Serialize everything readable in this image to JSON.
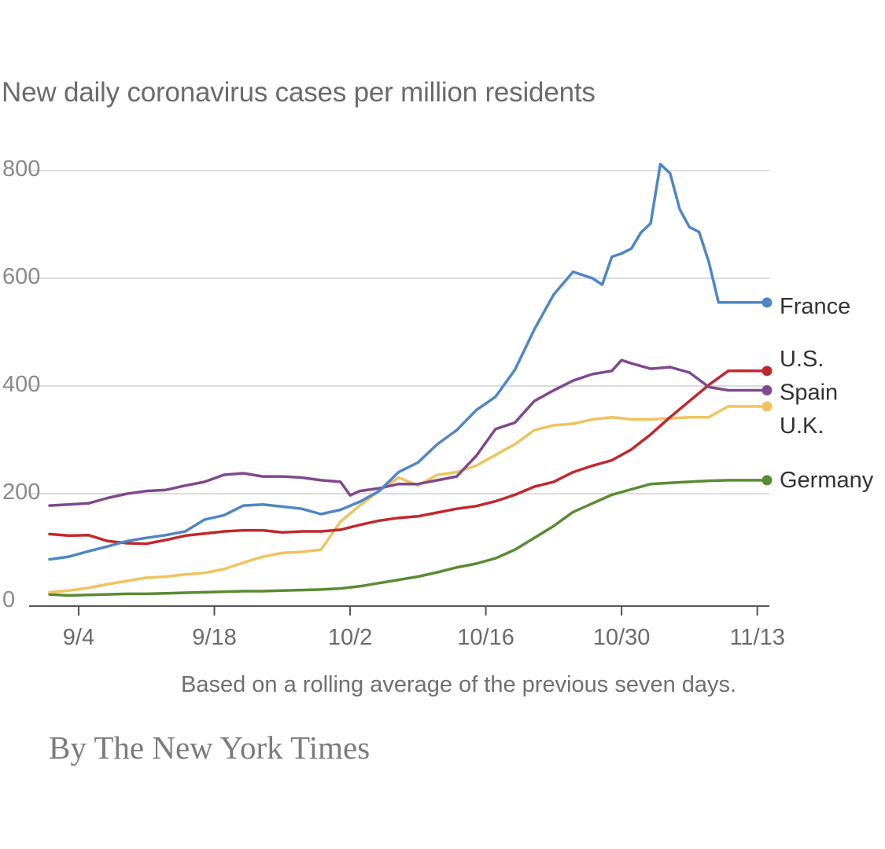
{
  "chart_data": {
    "type": "line",
    "title": "New daily coronavirus cases per million residents",
    "note": "Based on a rolling average of the previous seven days.",
    "credit": "By The New York Times",
    "xlabel": "",
    "ylabel": "",
    "ylim": [
      0,
      800
    ],
    "yticks": [
      0,
      200,
      400,
      600,
      800
    ],
    "ytick_labels": [
      "0",
      "200",
      "400",
      "600",
      "800"
    ],
    "xlim": [
      0,
      74
    ],
    "xticks": [
      3,
      17,
      31,
      45,
      59,
      73
    ],
    "xtick_labels": [
      "9/4",
      "9/18",
      "10/2",
      "10/16",
      "10/30",
      "11/13"
    ],
    "grid": true,
    "series": [
      {
        "name": "France",
        "label": "France",
        "color": "#4f86c6",
        "x": [
          0,
          2,
          4,
          6,
          8,
          10,
          12,
          14,
          16,
          18,
          20,
          22,
          24,
          26,
          28,
          30,
          32,
          34,
          36,
          38,
          40,
          42,
          44,
          46,
          48,
          50,
          52,
          54,
          56,
          57,
          58,
          59,
          60,
          61,
          62,
          63,
          64,
          65,
          66,
          67,
          68,
          69,
          70,
          71,
          72,
          73,
          74
        ],
        "values": [
          78,
          83,
          93,
          102,
          112,
          118,
          123,
          130,
          152,
          160,
          178,
          180,
          176,
          172,
          162,
          170,
          185,
          205,
          240,
          258,
          292,
          318,
          355,
          380,
          430,
          505,
          570,
          612,
          600,
          588,
          640,
          646,
          655,
          685,
          702,
          812,
          795,
          728,
          695,
          686,
          630,
          555,
          555,
          555,
          555,
          555,
          555
        ]
      },
      {
        "name": "Spain",
        "label": "Spain",
        "color": "#7e4a8c",
        "x": [
          0,
          2,
          4,
          6,
          8,
          10,
          12,
          14,
          16,
          18,
          20,
          22,
          24,
          26,
          28,
          30,
          31,
          32,
          34,
          36,
          38,
          40,
          42,
          44,
          46,
          48,
          50,
          52,
          54,
          56,
          58,
          59,
          60,
          62,
          64,
          66,
          68,
          70,
          72,
          74
        ],
        "values": [
          178,
          180,
          182,
          192,
          200,
          205,
          207,
          215,
          222,
          235,
          238,
          232,
          232,
          230,
          225,
          222,
          197,
          205,
          210,
          218,
          218,
          225,
          232,
          270,
          320,
          332,
          372,
          392,
          410,
          422,
          428,
          448,
          442,
          432,
          435,
          425,
          398,
          392,
          392,
          392
        ]
      },
      {
        "name": "U.S.",
        "label": "U.S.",
        "color": "#c0282d",
        "x": [
          0,
          2,
          4,
          6,
          8,
          10,
          12,
          14,
          16,
          18,
          20,
          22,
          24,
          26,
          28,
          30,
          32,
          34,
          36,
          38,
          40,
          42,
          44,
          46,
          48,
          50,
          52,
          54,
          56,
          58,
          60,
          62,
          64,
          66,
          68,
          70,
          72,
          74
        ],
        "values": [
          125,
          122,
          123,
          112,
          108,
          107,
          114,
          122,
          126,
          130,
          132,
          132,
          128,
          130,
          130,
          133,
          142,
          150,
          155,
          158,
          165,
          172,
          177,
          186,
          198,
          213,
          222,
          240,
          252,
          262,
          282,
          310,
          342,
          372,
          402,
          428,
          428,
          428
        ]
      },
      {
        "name": "U.K.",
        "label": "U.K.",
        "color": "#f0c35f",
        "x": [
          0,
          2,
          4,
          6,
          8,
          10,
          12,
          14,
          16,
          18,
          20,
          22,
          24,
          26,
          28,
          30,
          32,
          34,
          36,
          38,
          40,
          42,
          44,
          46,
          48,
          50,
          52,
          54,
          56,
          58,
          60,
          62,
          64,
          66,
          68,
          70,
          72,
          74
        ],
        "values": [
          17,
          20,
          25,
          32,
          38,
          44,
          46,
          50,
          53,
          60,
          72,
          83,
          90,
          92,
          96,
          148,
          178,
          205,
          230,
          215,
          235,
          240,
          252,
          272,
          292,
          318,
          327,
          330,
          338,
          342,
          338,
          338,
          340,
          342,
          342,
          362,
          362,
          362
        ]
      },
      {
        "name": "Germany",
        "label": "Germany",
        "color": "#5b8a34",
        "x": [
          0,
          2,
          4,
          6,
          8,
          10,
          12,
          14,
          16,
          18,
          20,
          22,
          24,
          26,
          28,
          30,
          32,
          34,
          36,
          38,
          40,
          42,
          44,
          46,
          48,
          50,
          52,
          54,
          56,
          58,
          60,
          62,
          64,
          66,
          68,
          70,
          72,
          74
        ],
        "values": [
          13,
          11,
          12,
          13,
          14,
          14,
          15,
          16,
          17,
          18,
          19,
          19,
          20,
          21,
          22,
          24,
          28,
          34,
          40,
          46,
          54,
          63,
          70,
          80,
          96,
          118,
          140,
          166,
          182,
          198,
          208,
          218,
          220,
          222,
          224,
          225,
          225,
          225
        ]
      }
    ]
  }
}
